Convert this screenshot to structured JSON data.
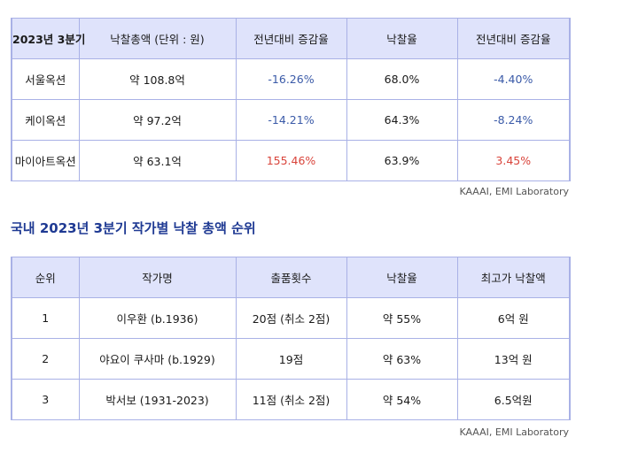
{
  "table1": {
    "headers": [
      "2023년 3분기",
      "낙찰총액 (단위 : 원)",
      "전년대비 증감율",
      "낙찰율",
      "전년대비 증감율"
    ],
    "rows": [
      [
        "서울옥션",
        "약 108.8억",
        "-16.26%",
        "68.0%",
        "-4.40%"
      ],
      [
        "케이옥션",
        "약 97.2억",
        "-14.21%",
        "64.3%",
        "-8.24%"
      ],
      [
        "마이아트옥션",
        "약 63.1억",
        "155.46%",
        "63.9%",
        "3.45%"
      ]
    ],
    "source": "KAAAI, EMI Laboratory",
    "colors": {
      "negative": "#3a5aa8",
      "positive": "#d9443b",
      "header_bg": "#dfe3fb",
      "border": "#a9b1e6"
    }
  },
  "section_title": "국내 2023년 3분기 작가별 낙찰 총액 순위",
  "table2": {
    "headers": [
      "순위",
      "작가명",
      "출품횟수",
      "낙찰율",
      "최고가 낙찰액"
    ],
    "rows": [
      [
        "1",
        "이우환 (b.1936)",
        "20점 (취소 2점)",
        "약 55%",
        "6억 원"
      ],
      [
        "2",
        "야요이 쿠사마 (b.1929)",
        "19점",
        "약 63%",
        "13억 원"
      ],
      [
        "3",
        "박서보 (1931-2023)",
        "11점 (취소 2점)",
        "약 54%",
        "6.5억원"
      ]
    ],
    "source": "KAAAI, EMI Laboratory"
  }
}
